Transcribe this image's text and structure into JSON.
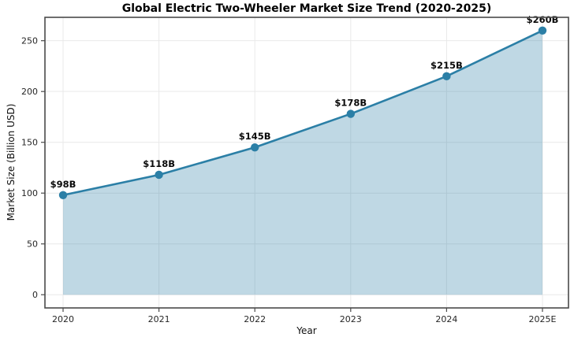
{
  "chart_data": {
    "type": "area",
    "title": "Global Electric Two-Wheeler Market Size Trend (2020-2025)",
    "xlabel": "Year",
    "ylabel": "Market Size (Billion USD)",
    "categories": [
      "2020",
      "2021",
      "2022",
      "2023",
      "2024",
      "2025E"
    ],
    "values": [
      98,
      118,
      145,
      178,
      215,
      260
    ],
    "point_labels": [
      "$98B",
      "$118B",
      "$145B",
      "$178B",
      "$215B",
      "$260B"
    ],
    "yticks": [
      0,
      50,
      100,
      150,
      200,
      250
    ],
    "ylim": [
      -13,
      273
    ],
    "baseline": 0,
    "grid": true,
    "legend_position": "none",
    "colors": {
      "line": "#2b7fa6",
      "fill": "rgba(43,127,166,0.30)",
      "marker": "#2b7fa6",
      "grid": "#e9e9e9",
      "spine": "#4a4a4a",
      "tick_text": "#262626",
      "title_text": "#000000"
    }
  }
}
